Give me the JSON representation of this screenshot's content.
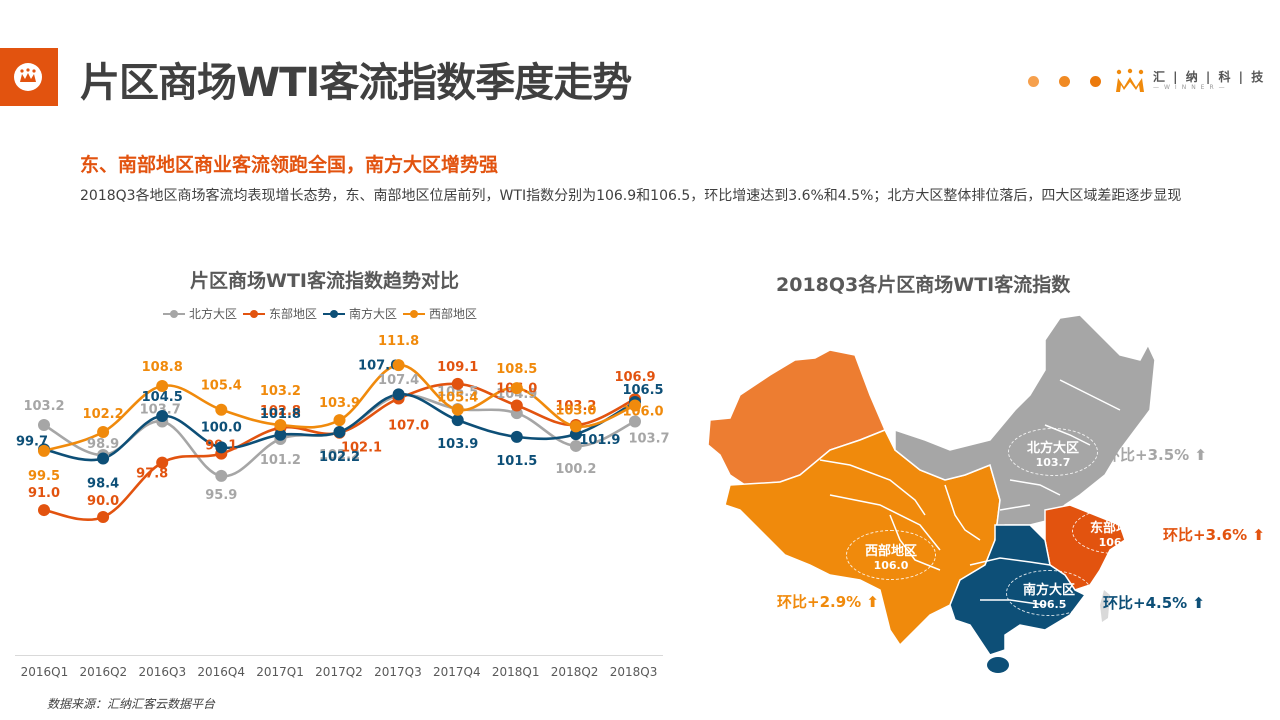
{
  "header": {
    "title": "片区商场WTI客流指数季度走势",
    "brand_name": "汇 | 纳 | 科 | 技",
    "brand_sub": "—WINNER—",
    "brand_dots": [
      "#f6a04d",
      "#f08a24",
      "#ec7a0c"
    ]
  },
  "summary": {
    "headline": "东、南部地区商业客流领跑全国，南方大区增势强",
    "description": "2018Q3各地区商场客流均表现增长态势，东、南部地区位居前列，WTI指数分别为106.9和106.5，环比增速达到3.6%和4.5%；北方大区整体排位落后，四大区域差距逐步显现"
  },
  "colors": {
    "north": "#a6a6a6",
    "east": "#e2530f",
    "south": "#0d4f77",
    "west": "#f08a0c",
    "xinjiang": "#ed7d31",
    "accent": "#e2530f"
  },
  "chart_data": [
    {
      "type": "line",
      "title": "片区商场WTI客流指数趋势对比",
      "categories": [
        "2016Q1",
        "2016Q2",
        "2016Q3",
        "2016Q4",
        "2017Q1",
        "2017Q2",
        "2017Q3",
        "2017Q4",
        "2018Q1",
        "2018Q2",
        "2018Q3"
      ],
      "series": [
        {
          "name": "北方大区",
          "color": "#a6a6a6",
          "values": [
            103.2,
            98.9,
            103.7,
            95.9,
            101.2,
            102.2,
            107.4,
            105.5,
            104.9,
            100.2,
            103.7
          ]
        },
        {
          "name": "东部地区",
          "color": "#e2530f",
          "values": [
            91.0,
            90.0,
            97.8,
            99.1,
            102.8,
            102.1,
            107.0,
            109.1,
            106.0,
            103.2,
            106.9
          ]
        },
        {
          "name": "南方大区",
          "color": "#0d4f77",
          "values": [
            99.7,
            98.4,
            104.5,
            100.0,
            101.8,
            102.2,
            107.6,
            103.9,
            101.5,
            101.9,
            106.5
          ]
        },
        {
          "name": "西部地区",
          "color": "#f08a0c",
          "values": [
            99.5,
            102.2,
            108.8,
            105.4,
            103.2,
            103.9,
            111.8,
            105.4,
            108.5,
            103.0,
            106.0
          ]
        }
      ],
      "xlabel": "",
      "ylabel": "",
      "ylim": [
        88,
        113
      ],
      "grid": false,
      "legend_position": "top",
      "smooth": true,
      "data_labels": true
    },
    {
      "type": "map",
      "title": "2018Q3各片区商场WTI客流指数",
      "regions": [
        {
          "name": "北方大区",
          "value": 103.7,
          "qoq": "环比+3.5%"
        },
        {
          "name": "东部地区",
          "value": 106.9,
          "qoq": "环比+3.6%"
        },
        {
          "name": "南方大区",
          "value": 106.5,
          "qoq": "环比+4.5%"
        },
        {
          "name": "西部地区",
          "value": 106.0,
          "qoq": "环比+2.9%"
        }
      ]
    }
  ],
  "footer": {
    "source": "数据来源：汇纳汇客云数据平台"
  },
  "map": {
    "north": {
      "name": "北方大区",
      "value": "103.7",
      "qoq": "环比+3.5%"
    },
    "east": {
      "name": "东部地区",
      "value": "106.9",
      "qoq": "环比+3.6%"
    },
    "south": {
      "name": "南方大区",
      "value": "106.5",
      "qoq": "环比+4.5%"
    },
    "west": {
      "name": "西部地区",
      "value": "106.0",
      "qoq": "环比+2.9%"
    }
  }
}
